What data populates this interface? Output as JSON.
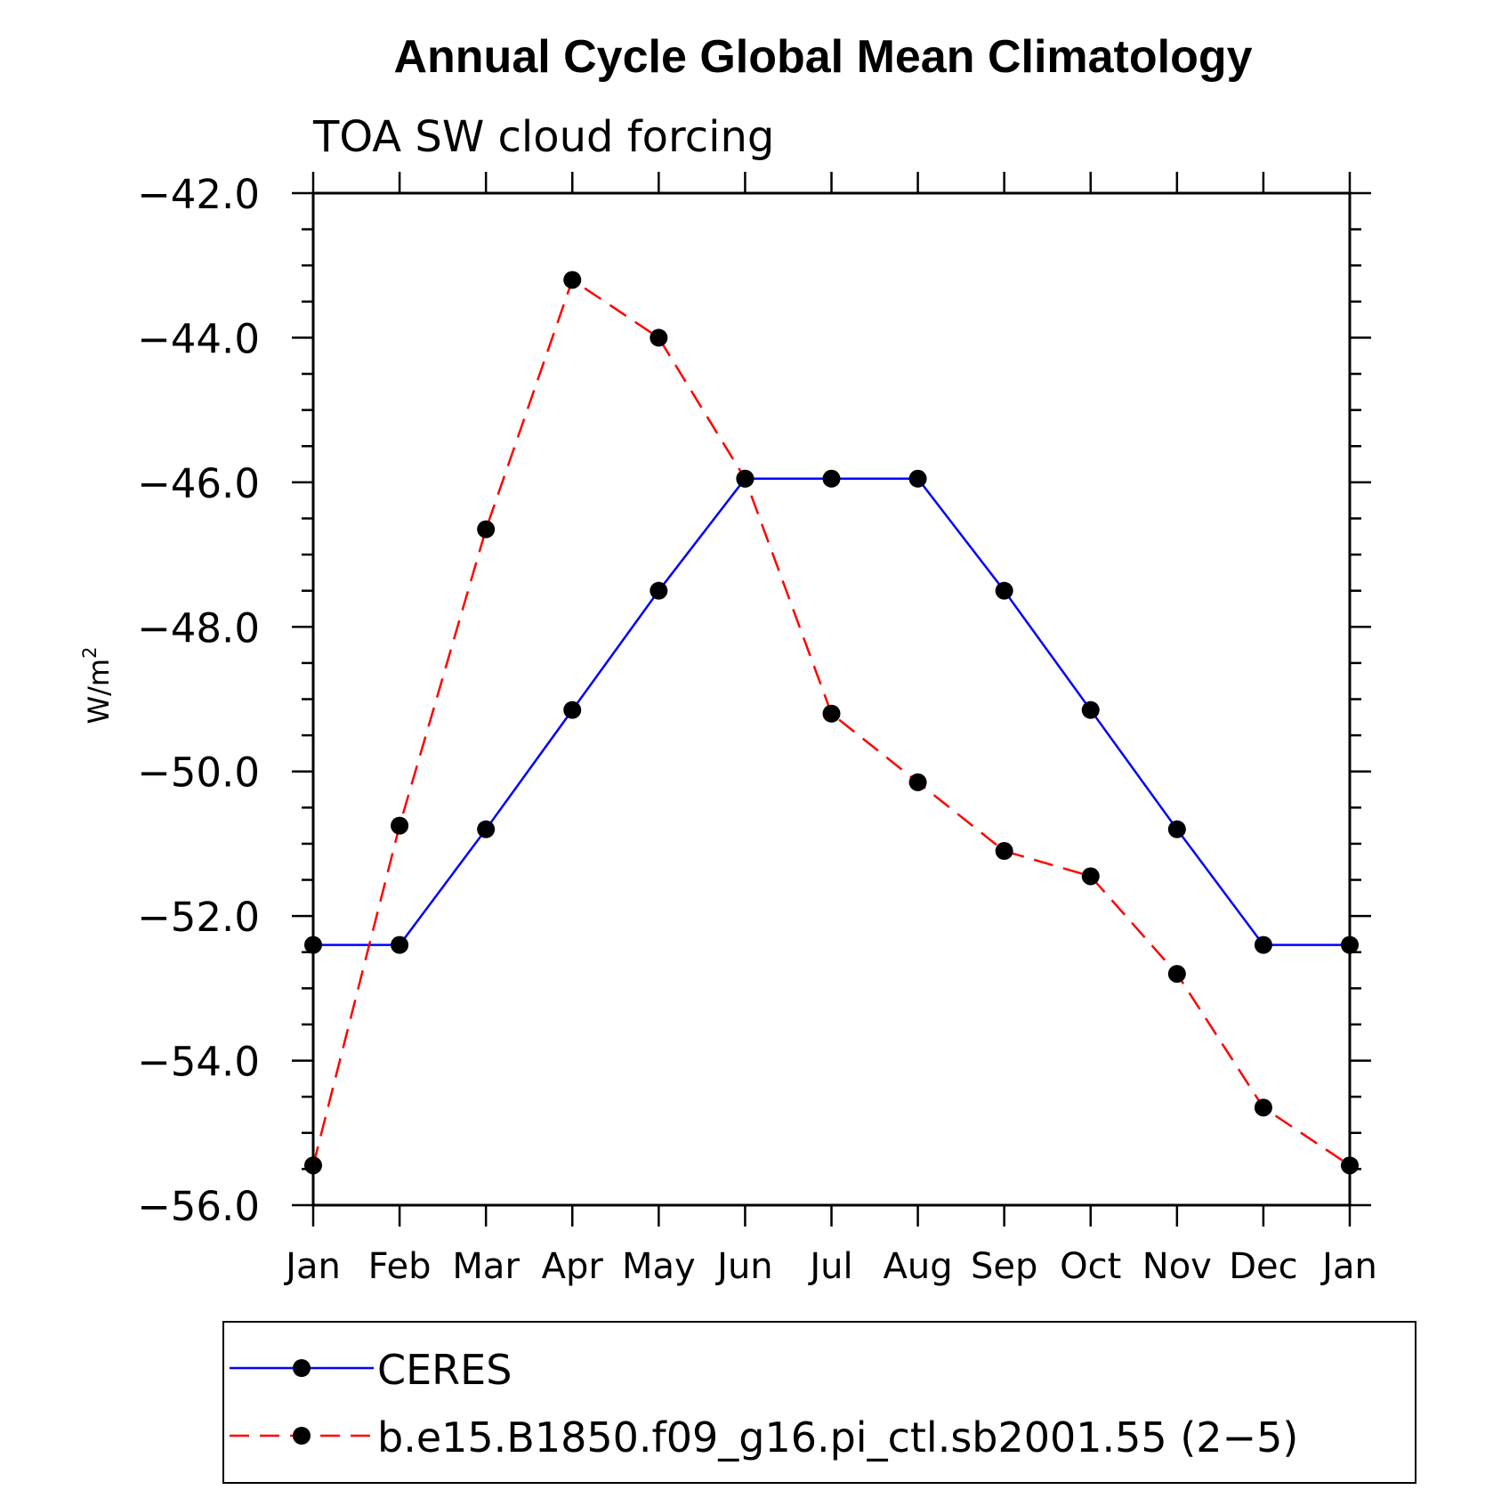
{
  "chart_data": {
    "type": "line",
    "title": "Annual Cycle Global Mean Climatology",
    "subtitle": "TOA SW cloud forcing",
    "ylabel_base": "W/m",
    "ylabel_sup": "2",
    "categories": [
      "Jan",
      "Feb",
      "Mar",
      "Apr",
      "May",
      "Jun",
      "Jul",
      "Aug",
      "Sep",
      "Oct",
      "Nov",
      "Dec",
      "Jan"
    ],
    "yticks": [
      "−42.0",
      "−44.0",
      "−46.0",
      "−48.0",
      "−50.0",
      "−52.0",
      "−54.0",
      "−56.0"
    ],
    "ylim": [
      -56,
      -42
    ],
    "grid": false,
    "legend_position": "bottom",
    "series": [
      {
        "name": "CERES",
        "color": "#0000ff",
        "dash": "solid",
        "values": [
          -52.4,
          -52.4,
          -50.8,
          -49.15,
          -47.5,
          -45.95,
          -45.95,
          -45.95,
          -47.5,
          -49.15,
          -50.8,
          -52.4,
          -52.4
        ]
      },
      {
        "name": "b.e15.B1850.f09_g16.pi_ctl.sb2001.55 (2−5)",
        "color": "#ff0000",
        "dash": "dashed",
        "values": [
          -55.45,
          -50.75,
          -46.65,
          -43.2,
          -44.0,
          -45.95,
          -49.2,
          -50.15,
          -51.1,
          -51.45,
          -52.8,
          -54.65,
          -55.45
        ]
      }
    ]
  }
}
